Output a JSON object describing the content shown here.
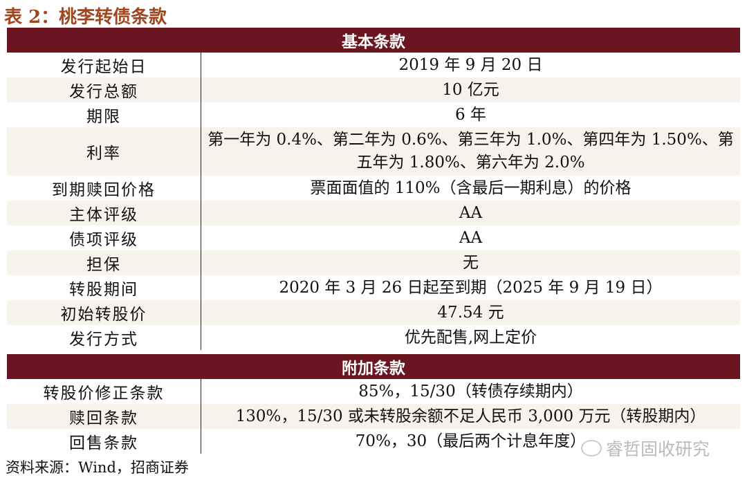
{
  "title": "表 2：桃李转债条款",
  "section1": "基本条款",
  "rows1": [
    {
      "k": "发行起始日",
      "v": "2019 年 9 月 20 日"
    },
    {
      "k": "发行总额",
      "v": "10 亿元"
    },
    {
      "k": "期限",
      "v": "6 年"
    },
    {
      "k": "利率",
      "v": "第一年为 0.4%、第二年为 0.6%、第三年为 1.0%、第四年为 1.50%、第五年为 1.80%、第六年为 2.0%"
    },
    {
      "k": "到期赎回价格",
      "v": "票面面值的 110%（含最后一期利息）的价格"
    },
    {
      "k": "主体评级",
      "v": "AA"
    },
    {
      "k": "债项评级",
      "v": "AA"
    },
    {
      "k": "担保",
      "v": "无"
    },
    {
      "k": "转股期间",
      "v": "2020 年 3 月 26 日起至到期（2025 年 9 月 19 日）"
    },
    {
      "k": "初始转股价",
      "v": "47.54 元"
    },
    {
      "k": "发行方式",
      "v": "优先配售,网上定价"
    }
  ],
  "section2": "附加条款",
  "rows2": [
    {
      "k": "转股价修正条款",
      "v": "85%，15/30（转债存续期内）"
    },
    {
      "k": "赎回条款",
      "v": "130%，15/30 或未转股余额不足人民币 3,000 万元（转股期内）"
    },
    {
      "k": "回售条款",
      "v": "70%，30（最后两个计息年度）"
    }
  ],
  "source": "资料来源：Wind，招商证券",
  "watermark": "睿哲固收研究",
  "colors": {
    "header": "#6b1520",
    "title": "#a0461e",
    "alt_row": "#f8f2ec"
  }
}
